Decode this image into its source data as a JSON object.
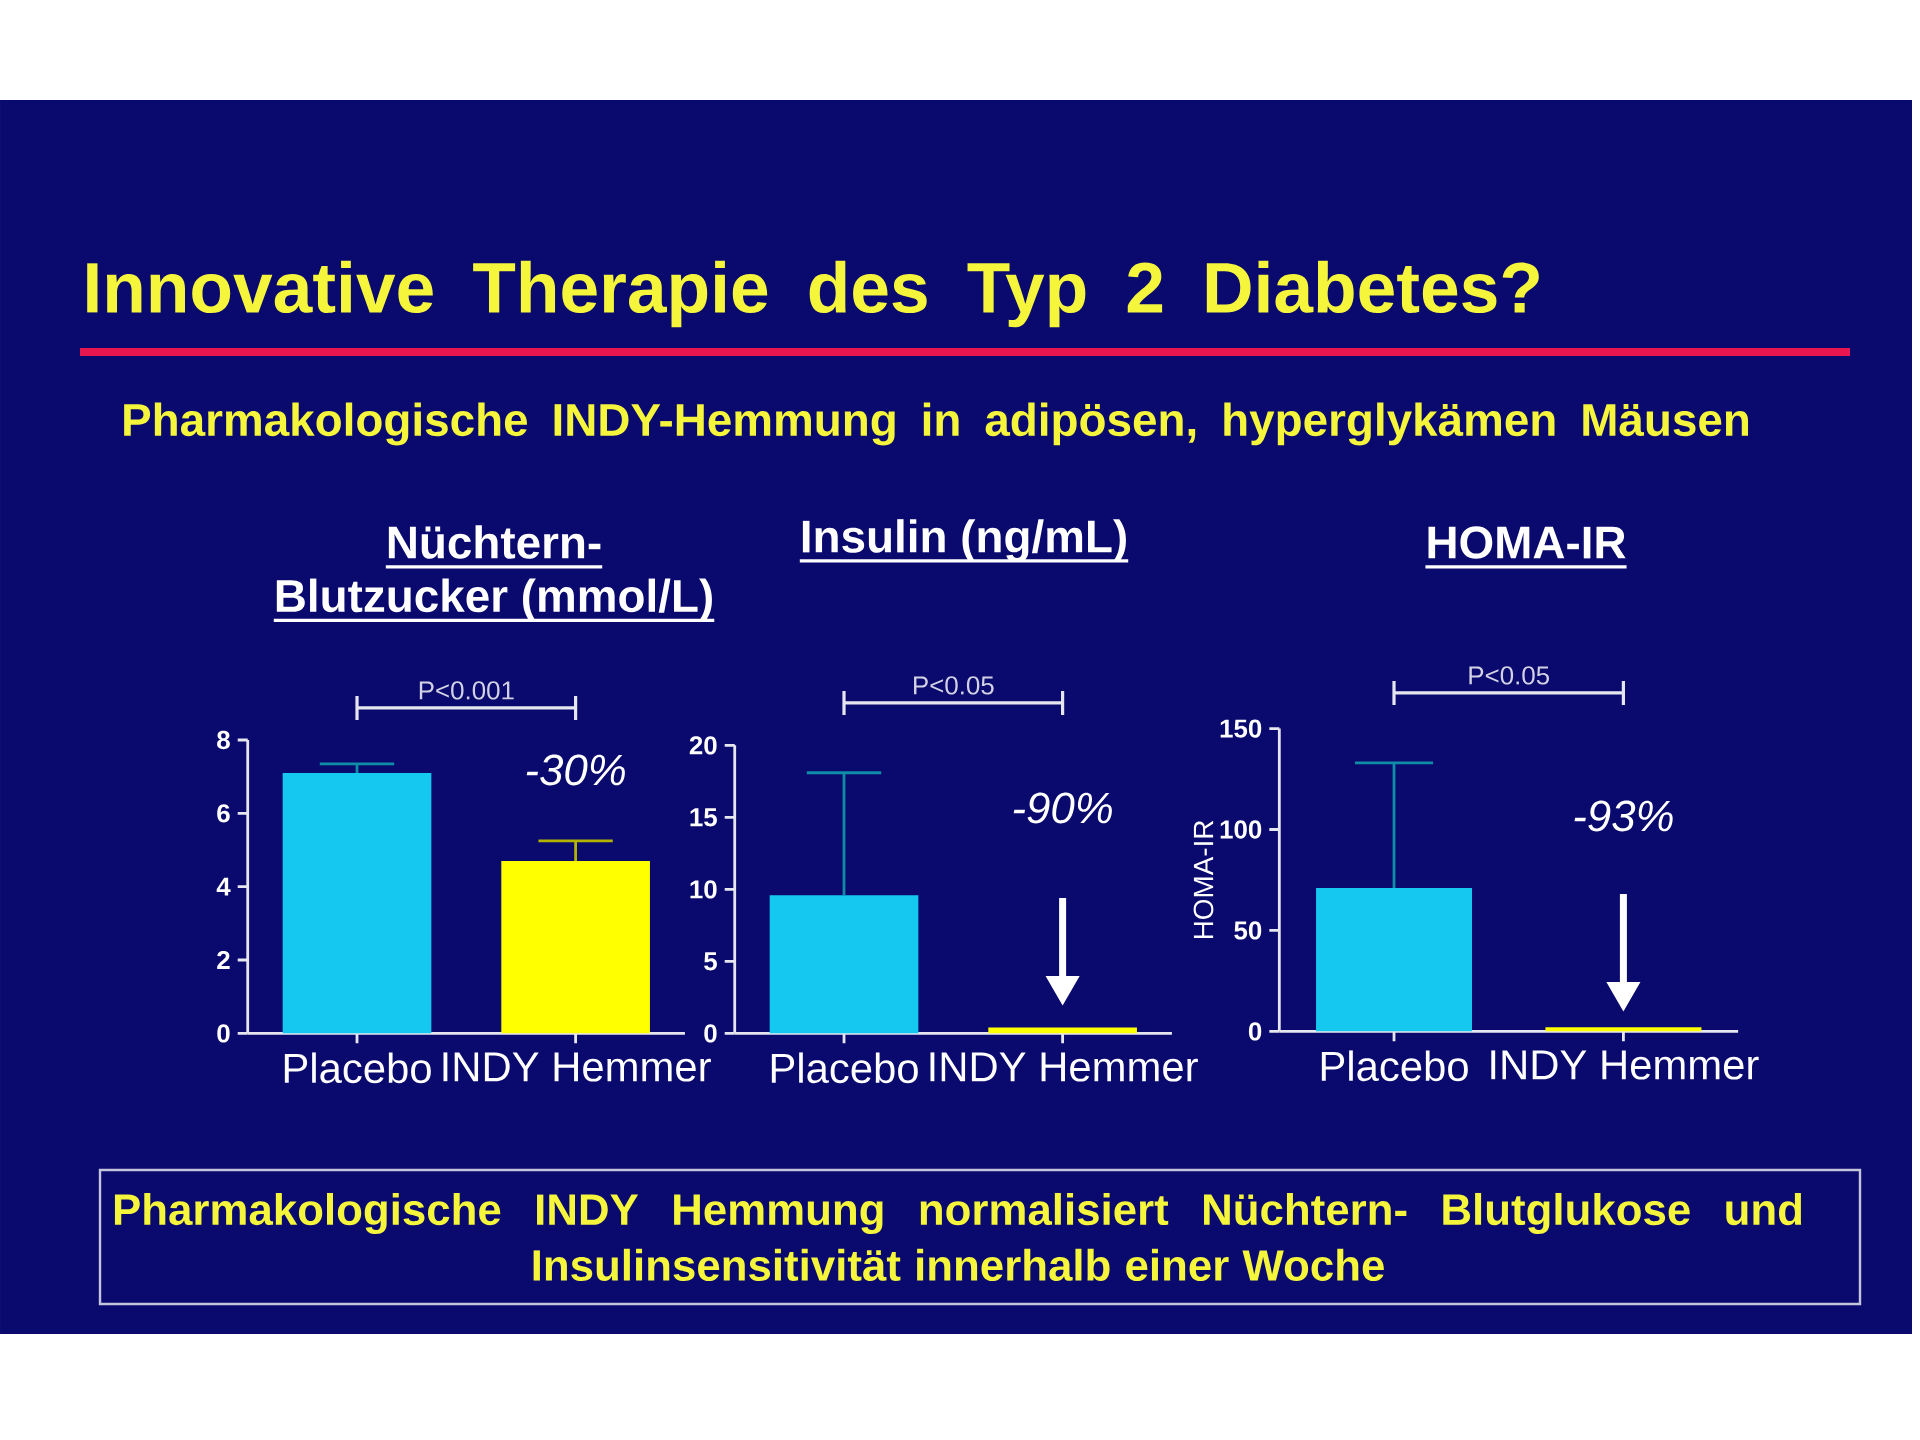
{
  "chart_data": [
    {
      "type": "other",
      "title": "Innovative Therapie des Typ 2 Diabetes?",
      "subtitle": "Pharmakologische INDY-Hemmung in adipösen, hyperglykämen Mäusen"
    },
    {
      "type": "bar",
      "title": "Nüchtern- Blutzucker (mmol/L)",
      "categories": [
        "Placebo",
        "INDY Hemmer"
      ],
      "values": [
        7.1,
        4.7
      ],
      "colors": [
        "#14c8f0",
        "#ffff00"
      ],
      "errors": [
        [
          7.1,
          7.35
        ],
        [
          4.7,
          5.25
        ]
      ],
      "ylim": [
        0,
        8
      ],
      "yticks": [
        0,
        2,
        4,
        6,
        8
      ],
      "annotations": [
        "P<0.001",
        "-30%"
      ]
    },
    {
      "type": "bar",
      "title": "Insulin (ng/mL)",
      "categories": [
        "Placebo",
        "INDY Hemmer"
      ],
      "values": [
        9.6,
        0.4
      ],
      "colors": [
        "#14c8f0",
        "#ffff00"
      ],
      "errors": [
        [
          9.6,
          18.1
        ],
        null
      ],
      "ylim": [
        0,
        20
      ],
      "yticks": [
        0,
        5,
        10,
        15,
        20
      ],
      "annotations": [
        "P<0.05",
        "-90%"
      ]
    },
    {
      "type": "bar",
      "title": "HOMA-IR",
      "ylabel": "HOMA-IR",
      "categories": [
        "Placebo",
        "INDY Hemmer"
      ],
      "values": [
        71,
        2
      ],
      "colors": [
        "#14c8f0",
        "#ffff00"
      ],
      "errors": [
        [
          71,
          133
        ],
        null
      ],
      "ylim": [
        0,
        150
      ],
      "yticks": [
        0,
        50,
        100,
        150
      ],
      "annotations": [
        "P<0.05",
        "-93%"
      ]
    },
    {
      "type": "other",
      "annotations": [
        "Pharmakologische INDY Hemmung normalisiert Nüchtern- Blutglukose und Insulinsensitivität innerhalb einer Woche"
      ]
    }
  ]
}
